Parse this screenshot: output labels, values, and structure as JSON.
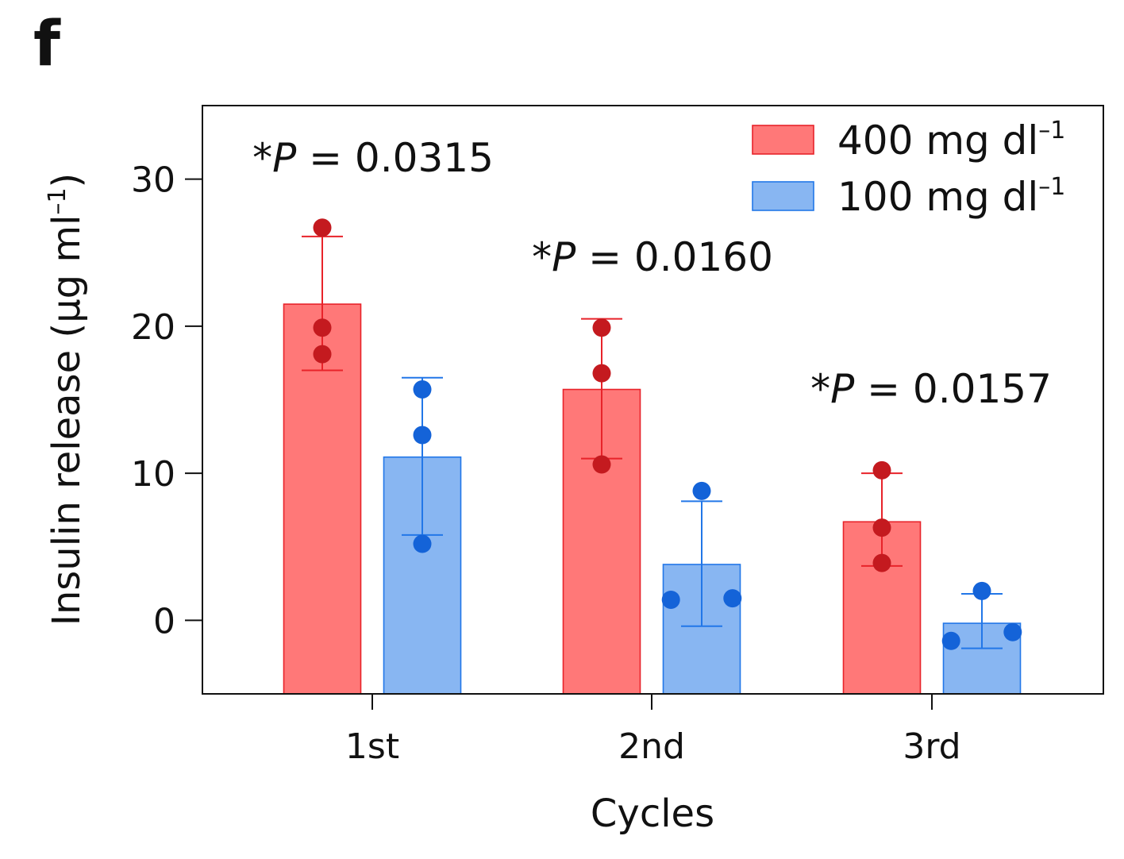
{
  "panel_label": "f",
  "chart_data": {
    "type": "bar",
    "categories": [
      "1st",
      "2nd",
      "3rd"
    ],
    "xlabel": "Cycles",
    "ylabel": "Insulin release (µg ml",
    "ylabel_sup": "–1",
    "ylabel_close": ")",
    "ylim": [
      -5,
      35
    ],
    "yticks": [
      0,
      10,
      20,
      30
    ],
    "grid": false,
    "legend_position": "top-right",
    "series": [
      {
        "name": "400 mg dl",
        "name_sup": "–1",
        "fill": "#ff7878",
        "stroke": "#e8232a",
        "point_color": "#c41a1f",
        "values": [
          21.5,
          15.7,
          6.7
        ],
        "err_low": [
          17.0,
          11.0,
          3.7
        ],
        "err_high": [
          26.1,
          20.5,
          10.0
        ],
        "points": [
          [
            26.7,
            19.9,
            18.1
          ],
          [
            19.9,
            16.8,
            10.6
          ],
          [
            10.2,
            6.3,
            3.9
          ]
        ]
      },
      {
        "name": "100 mg dl",
        "name_sup": "–1",
        "fill": "#88b6f2",
        "stroke": "#2277e8",
        "point_color": "#1463d8",
        "values": [
          11.1,
          3.8,
          -0.2
        ],
        "err_low": [
          5.8,
          -0.4,
          -1.9
        ],
        "err_high": [
          16.5,
          8.1,
          1.8
        ],
        "points": [
          [
            15.7,
            12.6,
            5.2
          ],
          [
            8.8,
            1.4,
            1.5
          ],
          [
            2.0,
            -1.4,
            -0.8
          ]
        ]
      }
    ],
    "annotations": [
      {
        "category": "1st",
        "prefix": "*",
        "italic": "P",
        "text": " = 0.0315"
      },
      {
        "category": "2nd",
        "prefix": "*",
        "italic": "P",
        "text": " = 0.0160"
      },
      {
        "category": "3rd",
        "prefix": "*",
        "italic": "P",
        "text": " = 0.0157"
      }
    ]
  }
}
